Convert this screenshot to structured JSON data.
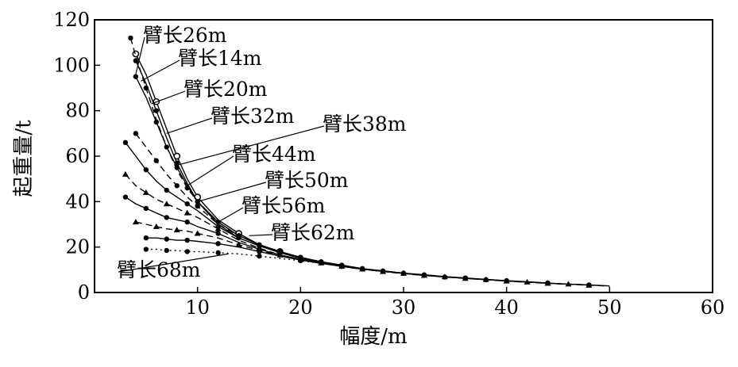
{
  "chart_data": {
    "type": "line",
    "title": "",
    "xlabel": "幅度/m",
    "ylabel": "起重量/t",
    "xlim": [
      0,
      60
    ],
    "ylim": [
      0,
      120
    ],
    "xticks": [
      0,
      10,
      20,
      30,
      40,
      50,
      60
    ],
    "yticks": [
      0,
      20,
      40,
      60,
      80,
      100,
      120
    ],
    "x_tick_labels": [
      "10",
      "20",
      "30",
      "40",
      "50",
      "60"
    ],
    "y_tick_labels": [
      "0",
      "20",
      "40",
      "60",
      "80",
      "100",
      "120"
    ],
    "grid": false,
    "colors": {
      "line": "#000000",
      "background": "#ffffff"
    },
    "series": [
      {
        "name": "臂长14m",
        "style": "solid",
        "marker": "dot",
        "x": [
          4,
          5,
          6,
          7,
          8,
          9,
          10,
          12,
          14
        ],
        "y": [
          102,
          92,
          80,
          68,
          57,
          48,
          40,
          30,
          24
        ]
      },
      {
        "name": "臂长20m",
        "style": "solid",
        "marker": "circle",
        "x": [
          4,
          5,
          6,
          7,
          8,
          9,
          10,
          12,
          14,
          16,
          18,
          20
        ],
        "y": [
          105,
          96,
          84,
          72,
          60,
          50,
          42,
          32,
          26,
          21,
          18,
          15
        ]
      },
      {
        "name": "臂长26m",
        "style": "dashed",
        "marker": "dot",
        "x": [
          3.5,
          4,
          5,
          6,
          7,
          8,
          9,
          10,
          12,
          14,
          16,
          18,
          20,
          22,
          24,
          26
        ],
        "y": [
          112,
          104,
          90,
          76,
          64,
          54,
          46,
          40,
          31,
          25,
          21,
          18,
          15.5,
          13.5,
          12,
          10.5
        ]
      },
      {
        "name": "臂长32m",
        "style": "solid",
        "marker": "dot",
        "x": [
          4,
          5,
          6,
          7,
          8,
          9,
          10,
          12,
          14,
          16,
          18,
          20,
          22,
          24,
          26,
          28,
          30,
          32
        ],
        "y": [
          95,
          86,
          75,
          64,
          55,
          47,
          40,
          31,
          25,
          21,
          18,
          15.5,
          13.5,
          12,
          10.5,
          9.5,
          8.5,
          7.5
        ]
      },
      {
        "name": "臂长38m",
        "style": "dashed",
        "marker": "dot",
        "x": [
          4,
          5,
          6,
          7,
          8,
          9,
          10,
          12,
          14,
          16,
          18,
          20,
          22,
          24,
          26,
          28,
          30,
          32,
          34,
          36,
          38
        ],
        "y": [
          70,
          64,
          58,
          52,
          47,
          42,
          38,
          30,
          25,
          21,
          18,
          15.5,
          13.5,
          12,
          10.5,
          9.5,
          8.5,
          7.5,
          6.8,
          6.2,
          5.6
        ]
      },
      {
        "name": "臂长44m",
        "style": "solid",
        "marker": "dot",
        "x": [
          3,
          4,
          5,
          6,
          7,
          8,
          9,
          10,
          12,
          14,
          16,
          18,
          20,
          22,
          24,
          26,
          28,
          30,
          32,
          34,
          36,
          38,
          40,
          42,
          44
        ],
        "y": [
          66,
          60,
          54,
          49,
          45,
          42,
          39,
          36,
          29,
          24,
          20.5,
          17.5,
          15,
          13.5,
          12,
          10.5,
          9.5,
          8.5,
          7.8,
          7,
          6.4,
          5.8,
          5.2,
          4.7,
          4.2
        ]
      },
      {
        "name": "臂长50m",
        "style": "dashed",
        "marker": "triangle",
        "x": [
          3,
          4,
          5,
          6,
          7,
          8,
          9,
          10,
          12,
          14,
          16,
          18,
          20,
          22,
          24,
          26,
          28,
          30,
          32,
          34,
          36,
          38,
          40,
          42,
          44,
          46,
          48,
          50
        ],
        "y": [
          52,
          47,
          44,
          41,
          39,
          37,
          35,
          33,
          28,
          23,
          19.5,
          16.5,
          14.5,
          13,
          11.5,
          10.2,
          9.2,
          8.3,
          7.5,
          6.8,
          6.2,
          5.6,
          5,
          4.5,
          4,
          3.6,
          3.2,
          2.8
        ]
      },
      {
        "name": "臂长56m",
        "style": "solid",
        "marker": "dot",
        "x": [
          3,
          4,
          5,
          6,
          7,
          8,
          9,
          10,
          12,
          14,
          16,
          18,
          20,
          22,
          24,
          26,
          28,
          30,
          32,
          34,
          36,
          38,
          40,
          42,
          44,
          46,
          48,
          50
        ],
        "y": [
          42,
          39,
          37,
          35,
          33,
          32,
          31,
          29,
          26,
          22,
          19,
          16.5,
          14.5,
          13,
          11.5,
          10.3,
          9.3,
          8.4,
          7.6,
          6.9,
          6.3,
          5.7,
          5.1,
          4.6,
          4.1,
          3.7,
          3.3,
          2.9
        ]
      },
      {
        "name": "臂长62m",
        "style": "dashed",
        "marker": "triangle",
        "x": [
          4,
          5,
          6,
          7,
          8,
          9,
          10,
          12,
          14,
          16,
          18,
          20,
          22,
          24,
          26,
          28,
          30,
          32,
          34,
          36,
          38,
          40,
          42,
          44,
          46,
          48
        ],
        "y": [
          31,
          30,
          29,
          28,
          27.5,
          27,
          26,
          24,
          21,
          18.5,
          16.5,
          14.5,
          13,
          11.5,
          10.3,
          9.3,
          8.4,
          7.6,
          6.9,
          6.3,
          5.7,
          5.1,
          4.6,
          4.1,
          3.7,
          3.3
        ]
      },
      {
        "name": "臂长68m",
        "style": "solid",
        "marker": "dot",
        "x": [
          5,
          6,
          7,
          8,
          9,
          10,
          12,
          14,
          16,
          18,
          20,
          22,
          24,
          26,
          28,
          30,
          32,
          34,
          36,
          38,
          40,
          42,
          44,
          46,
          48
        ],
        "y": [
          24,
          24,
          23.5,
          23,
          23,
          22.5,
          21.5,
          20,
          18,
          16,
          14.3,
          12.8,
          11.5,
          10.3,
          9.3,
          8.4,
          7.6,
          6.9,
          6.3,
          5.7,
          5.1,
          4.6,
          4.1,
          3.7,
          3.3
        ]
      },
      {
        "name": "",
        "style": "dotted",
        "marker": "dot",
        "x": [
          5,
          6,
          7,
          8,
          9,
          10,
          12,
          14,
          16,
          18,
          20,
          22,
          24,
          26,
          28,
          30
        ],
        "y": [
          19,
          19,
          18.5,
          18.5,
          18,
          18,
          17.5,
          17,
          16,
          15,
          14,
          12.8,
          11.5,
          10.3,
          9.3,
          8.4
        ]
      }
    ],
    "annotations": [
      {
        "text": "臂长26m",
        "leader_to": [
          4,
          96
        ]
      },
      {
        "text": "臂长14m",
        "leader_to": [
          4.5,
          93
        ]
      },
      {
        "text": "臂长20m",
        "leader_to": [
          5.5,
          83
        ]
      },
      {
        "text": "臂长32m",
        "leader_to": [
          7,
          70
        ]
      },
      {
        "text": "臂长38m",
        "leader_to": [
          8,
          56
        ]
      },
      {
        "text": "臂长44m",
        "leader_to": [
          9,
          47
        ]
      },
      {
        "text": "臂长50m",
        "leader_to": [
          10,
          40
        ]
      },
      {
        "text": "臂长56m",
        "leader_to": [
          12,
          31
        ]
      },
      {
        "text": "臂长62m",
        "leader_to": [
          15,
          25
        ]
      },
      {
        "text": "臂长68m",
        "leader_to": [
          13,
          17
        ]
      }
    ]
  }
}
